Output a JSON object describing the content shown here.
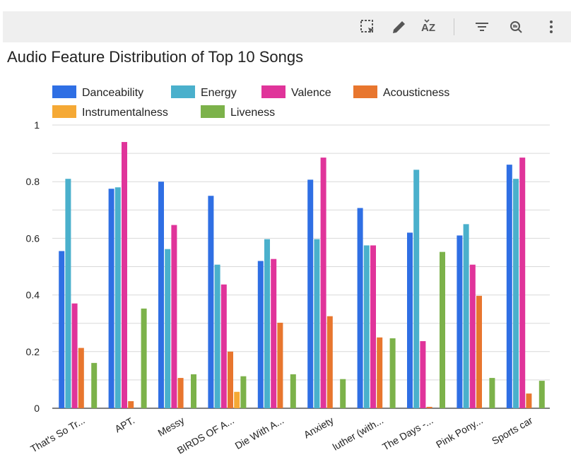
{
  "toolbar": {
    "icons": [
      "select-region-icon",
      "edit-pencil-icon",
      "sort-az-icon",
      "filter-icon",
      "zoom-icon",
      "more-vert-icon"
    ]
  },
  "chart_data": {
    "type": "bar",
    "title": "Audio Feature Distribution of Top 10 Songs",
    "xlabel": "",
    "ylabel": "",
    "ylim": [
      0,
      1
    ],
    "yticks": [
      "0",
      "0.2",
      "0.4",
      "0.6",
      "0.8",
      "1"
    ],
    "grid": true,
    "legend": "top",
    "categories": [
      "That's So Tr...",
      "APT.",
      "Messy",
      "BIRDS OF A...",
      "Die With A...",
      "Anxiety",
      "luther (with...",
      "The Days -...",
      "Pink Pony...",
      "Sports car"
    ],
    "series": [
      {
        "name": "Danceability",
        "color": "#2f6fe4",
        "values": [
          0.555,
          0.775,
          0.8,
          0.75,
          0.52,
          0.807,
          0.707,
          0.62,
          0.61,
          0.86
        ]
      },
      {
        "name": "Energy",
        "color": "#4ab0cc",
        "values": [
          0.81,
          0.78,
          0.562,
          0.507,
          0.597,
          0.597,
          0.575,
          0.842,
          0.65,
          0.81
        ]
      },
      {
        "name": "Valence",
        "color": "#e0349a",
        "values": [
          0.37,
          0.94,
          0.647,
          0.437,
          0.527,
          0.885,
          0.575,
          0.237,
          0.507,
          0.885
        ]
      },
      {
        "name": "Acousticness",
        "color": "#e8762e",
        "values": [
          0.213,
          0.025,
          0.107,
          0.2,
          0.302,
          0.325,
          0.25,
          0.005,
          0.397,
          0.052
        ]
      },
      {
        "name": "Instrumentalness",
        "color": "#f5a935",
        "values": [
          0.0,
          0.0,
          0.0,
          0.058,
          0.0,
          0.0,
          0.0,
          0.0,
          0.0,
          0.0
        ]
      },
      {
        "name": "Liveness",
        "color": "#7cb24a",
        "values": [
          0.16,
          0.352,
          0.12,
          0.113,
          0.12,
          0.103,
          0.247,
          0.552,
          0.107,
          0.097
        ]
      }
    ]
  }
}
